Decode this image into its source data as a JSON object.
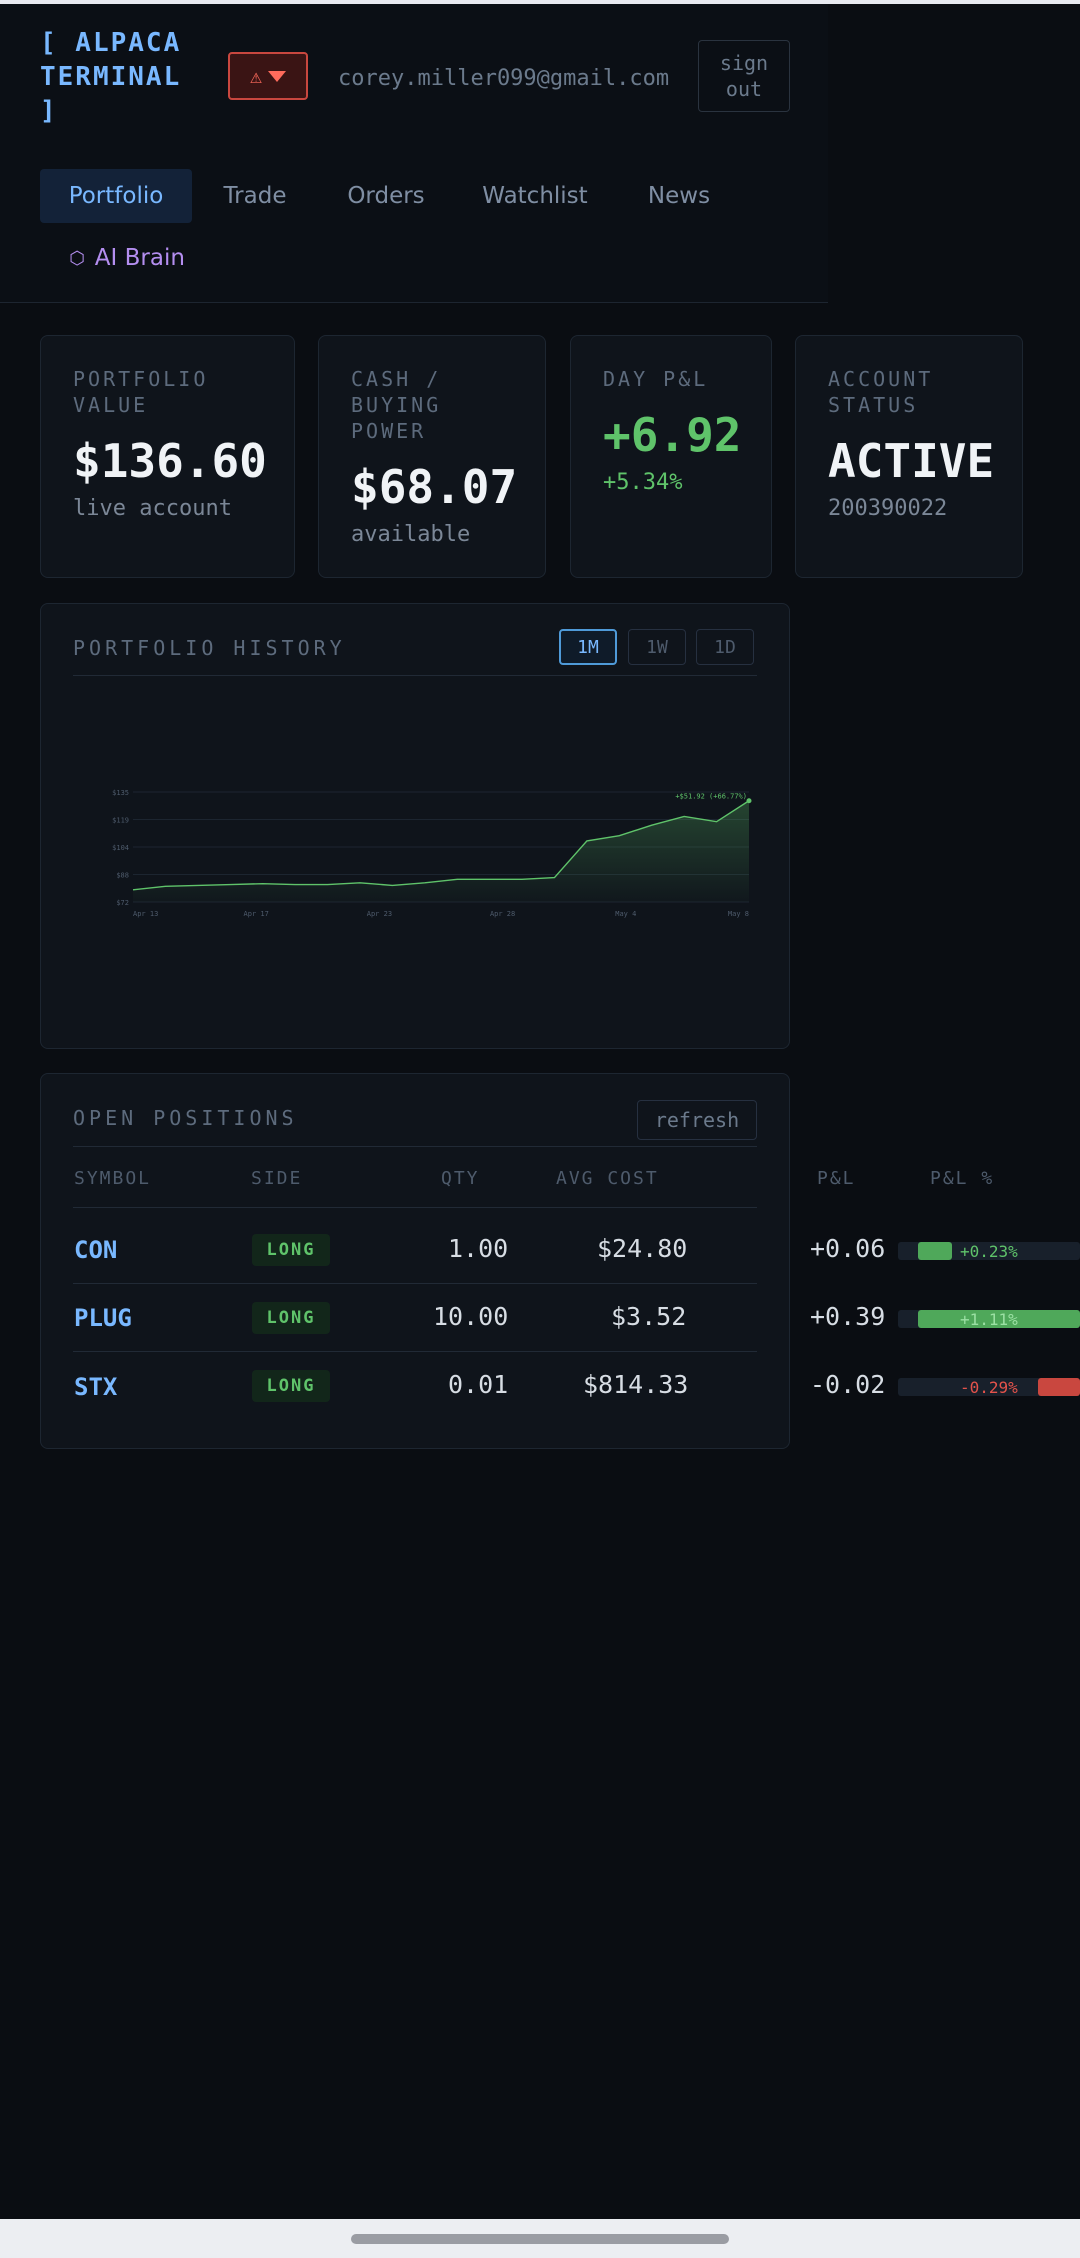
{
  "header": {
    "logo": "[ ALPACA TERMINAL ]",
    "alert_icon": "warning-triangle-icon",
    "email": "corey.miller099@gmail.com",
    "signout_label": "sign\nout"
  },
  "nav": {
    "tabs": [
      {
        "label": "Portfolio",
        "active": true
      },
      {
        "label": "Trade"
      },
      {
        "label": "Orders"
      },
      {
        "label": "Watchlist"
      },
      {
        "label": "News"
      },
      {
        "label": "AI Brain",
        "icon": "hexagon-icon"
      }
    ]
  },
  "cards": {
    "portfolio": {
      "label": "PORTFOLIO VALUE",
      "value": "$136.60",
      "sub": "live account"
    },
    "cash": {
      "label": "CASH / BUYING POWER",
      "value": "$68.07",
      "sub": "available"
    },
    "daypl": {
      "label": "DAY P&L",
      "value": "+6.92",
      "sub": "+5.34%"
    },
    "status": {
      "label": "ACCOUNT STATUS",
      "value": "ACTIVE",
      "sub": "200390022"
    }
  },
  "history": {
    "title": "PORTFOLIO HISTORY",
    "ranges": [
      "1M",
      "1W",
      "1D"
    ],
    "active_range": "1M"
  },
  "chart_data": {
    "type": "area",
    "y_ticks": [
      "$72",
      "$88",
      "$104",
      "$119",
      "$135"
    ],
    "ylim": [
      72,
      135
    ],
    "x_ticks": [
      "Apr 13",
      "Apr 17",
      "Apr 23",
      "Apr 28",
      "May 4",
      "May 8"
    ],
    "values": [
      79,
      81,
      81.5,
      82,
      82.5,
      82,
      82,
      83,
      81.5,
      83,
      85,
      85,
      85,
      86,
      107,
      110,
      116,
      121,
      118,
      130
    ],
    "annotation": "+$51.92 (+66.77%)",
    "line_color": "#5fc36a"
  },
  "positions": {
    "title": "OPEN POSITIONS",
    "refresh_label": "refresh",
    "columns": [
      "SYMBOL",
      "SIDE",
      "QTY",
      "AVG COST",
      "P&L",
      "P&L %"
    ],
    "rows": [
      {
        "symbol": "CON",
        "side": "LONG",
        "qty": "1.00",
        "avg": "$24.80",
        "pl": "+0.06",
        "plpct": "+0.23%",
        "fill": 0.2,
        "dir": "up"
      },
      {
        "symbol": "PLUG",
        "side": "LONG",
        "qty": "10.00",
        "avg": "$3.52",
        "pl": "+0.39",
        "plpct": "+1.11%",
        "fill": 1.0,
        "dir": "up"
      },
      {
        "symbol": "STX",
        "side": "LONG",
        "qty": "0.01",
        "avg": "$814.33",
        "pl": "-0.02",
        "plpct": "-0.29%",
        "fill": 0.26,
        "dir": "down"
      }
    ]
  }
}
